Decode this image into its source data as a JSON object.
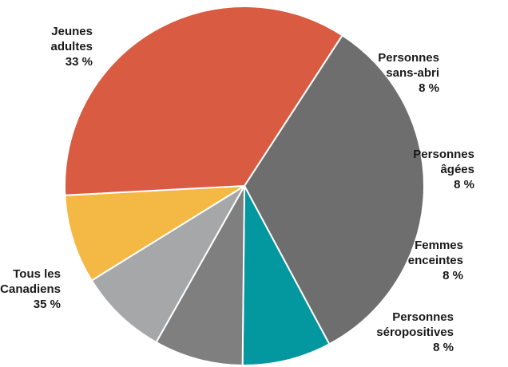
{
  "chart_data": {
    "type": "pie",
    "slices": [
      {
        "label_lines": [
          "Jeunes",
          "adultes"
        ],
        "value_label": "33 %",
        "value": 33,
        "color": "#6d6e6d"
      },
      {
        "label_lines": [
          "Personnes",
          "sans-abri"
        ],
        "value_label": "8 %",
        "value": 8,
        "color": "#03979f"
      },
      {
        "label_lines": [
          "Personnes",
          "âgées"
        ],
        "value_label": "8 %",
        "value": 8,
        "color": "#7f7f7f"
      },
      {
        "label_lines": [
          "Femmes",
          "enceintes"
        ],
        "value_label": "8 %",
        "value": 8,
        "color": "#a6a7a9"
      },
      {
        "label_lines": [
          "Personnes",
          "séropositives"
        ],
        "value_label": "8 %",
        "value": 8,
        "color": "#f4b844"
      },
      {
        "label_lines": [
          "Tous les",
          "Canadiens"
        ],
        "value_label": "35 %",
        "value": 35,
        "color": "#d95b42"
      }
    ]
  }
}
